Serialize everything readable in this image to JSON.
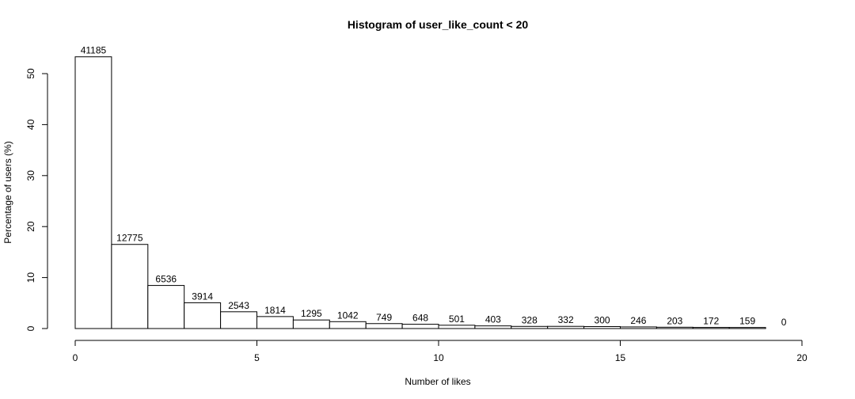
{
  "chart_data": {
    "type": "bar",
    "title": "Histogram of user_like_count < 20",
    "xlabel": "Number of likes",
    "ylabel": "Percentage of users (%)",
    "x_ticks": [
      0,
      5,
      10,
      15,
      20
    ],
    "y_ticks": [
      0,
      10,
      20,
      30,
      40,
      50
    ],
    "xlim": [
      0,
      20
    ],
    "ylim": [
      0,
      53.3
    ],
    "bin_edges": [
      0,
      1,
      2,
      3,
      4,
      5,
      6,
      7,
      8,
      9,
      10,
      11,
      12,
      13,
      14,
      15,
      16,
      17,
      18,
      19,
      20
    ],
    "counts": [
      41185,
      12775,
      6536,
      3914,
      2543,
      1814,
      1295,
      1042,
      749,
      648,
      501,
      403,
      328,
      332,
      300,
      246,
      203,
      172,
      159,
      0
    ],
    "values": [
      53.3,
      16.5,
      8.45,
      5.06,
      3.29,
      2.35,
      1.68,
      1.35,
      0.97,
      0.84,
      0.65,
      0.52,
      0.42,
      0.43,
      0.39,
      0.32,
      0.26,
      0.22,
      0.21,
      0.0
    ],
    "grid": false,
    "legend": "none"
  }
}
